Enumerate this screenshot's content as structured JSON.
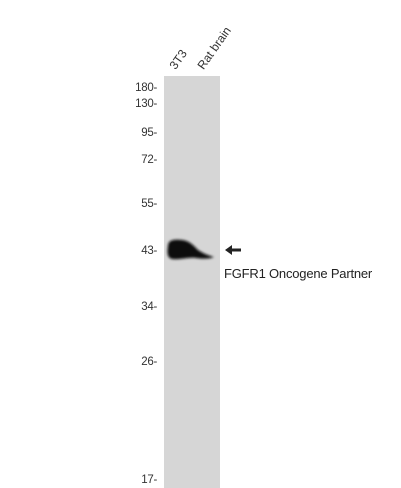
{
  "lanes": [
    "3T3",
    "Rat brain"
  ],
  "markers": [
    "180-",
    "130-",
    "95-",
    "72-",
    "55-",
    "43-",
    "34-",
    "26-",
    "17-"
  ],
  "band": {
    "label": "FGFR1 Oncogene Partner",
    "lane": "3T3"
  },
  "colors": {
    "membrane": "#d6d6d6",
    "band": "#111111",
    "text": "#222222"
  },
  "icons": {
    "arrow": "arrow-left-icon"
  }
}
